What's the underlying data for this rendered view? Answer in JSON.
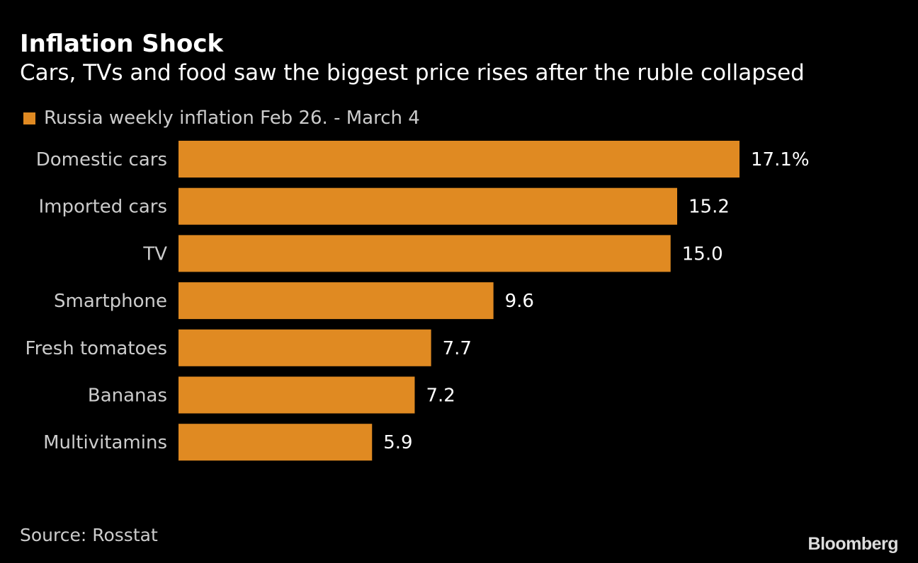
{
  "title": "Inflation Shock",
  "subtitle": "Cars, TVs and food saw the biggest price rises after the ruble collapsed",
  "source": "Source: Rosstat",
  "logo": "Bloomberg",
  "colors": {
    "bar": "#E08A22",
    "background": "#000000"
  },
  "chart_data": {
    "type": "bar",
    "orientation": "horizontal",
    "categories": [
      "Domestic cars",
      "Imported cars",
      "TV",
      "Smartphone",
      "Fresh tomatoes",
      "Bananas",
      "Multivitamins"
    ],
    "series": [
      {
        "name": "Russia weekly inflation Feb 26. - March 4",
        "values": [
          17.1,
          15.2,
          15.0,
          9.6,
          7.7,
          7.2,
          5.9
        ]
      }
    ],
    "data_labels": [
      "17.1%",
      "15.2",
      "15.0",
      "9.6",
      "7.7",
      "7.2",
      "5.9"
    ],
    "xlim": [
      0,
      17.1
    ],
    "grid": false,
    "legend": "top-left"
  }
}
